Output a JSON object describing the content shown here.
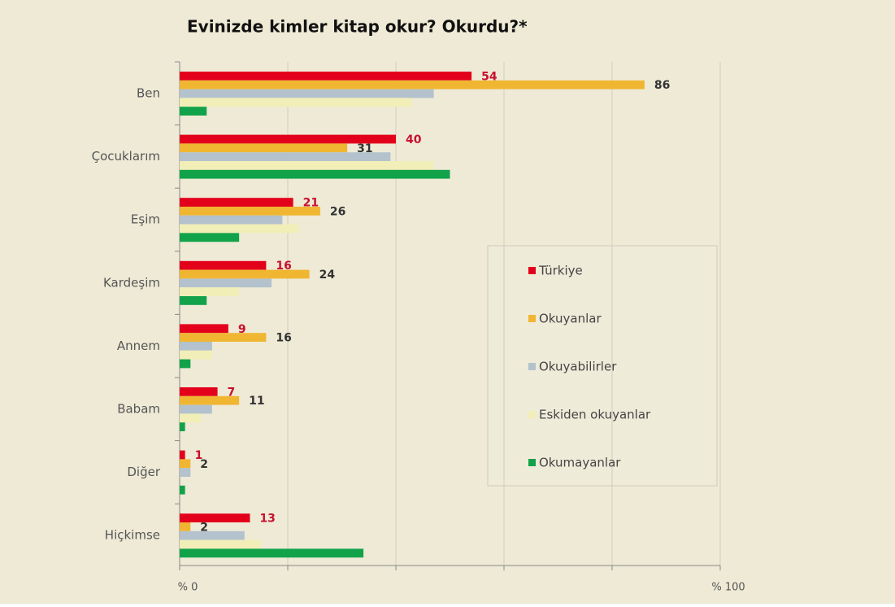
{
  "chart_data": {
    "type": "bar",
    "orientation": "horizontal",
    "title": "Evinizde kimler kitap okur? Okurdu?*",
    "categories": [
      "Ben",
      "Çocuklarım",
      "Eşim",
      "Kardeşim",
      "Annem",
      "Babam",
      "Diğer",
      "Hiçkimse"
    ],
    "series": [
      {
        "name": "Türkiye",
        "color": "#e3001b",
        "values": [
          54,
          40,
          21,
          16,
          9,
          7,
          1,
          13
        ]
      },
      {
        "name": "Okuyanlar",
        "color": "#f0b632",
        "values": [
          86,
          31,
          26,
          24,
          16,
          11,
          2,
          2
        ]
      },
      {
        "name": "Okuyabilirler",
        "color": "#b3c2cc",
        "values": [
          47,
          39,
          19,
          17,
          6,
          6,
          2,
          12
        ]
      },
      {
        "name": "Eskiden okuyanlar",
        "color": "#f2eeb8",
        "values": [
          43,
          47,
          22,
          11,
          6,
          4,
          0,
          15
        ]
      },
      {
        "name": "Okumayanlar",
        "color": "#12a24a",
        "values": [
          5,
          50,
          11,
          5,
          2,
          1,
          1,
          34
        ]
      }
    ],
    "labeled_series": [
      0,
      1
    ],
    "label_colors": [
      "#c8102e",
      "#333333"
    ],
    "xlim": [
      0,
      100
    ],
    "xticks": [
      {
        "value": 0,
        "label": "% 0"
      },
      {
        "value": 100,
        "label": "% 100"
      }
    ],
    "xgrid": [
      0,
      20,
      40,
      60,
      80,
      100
    ],
    "grid": true,
    "legend": "right"
  }
}
